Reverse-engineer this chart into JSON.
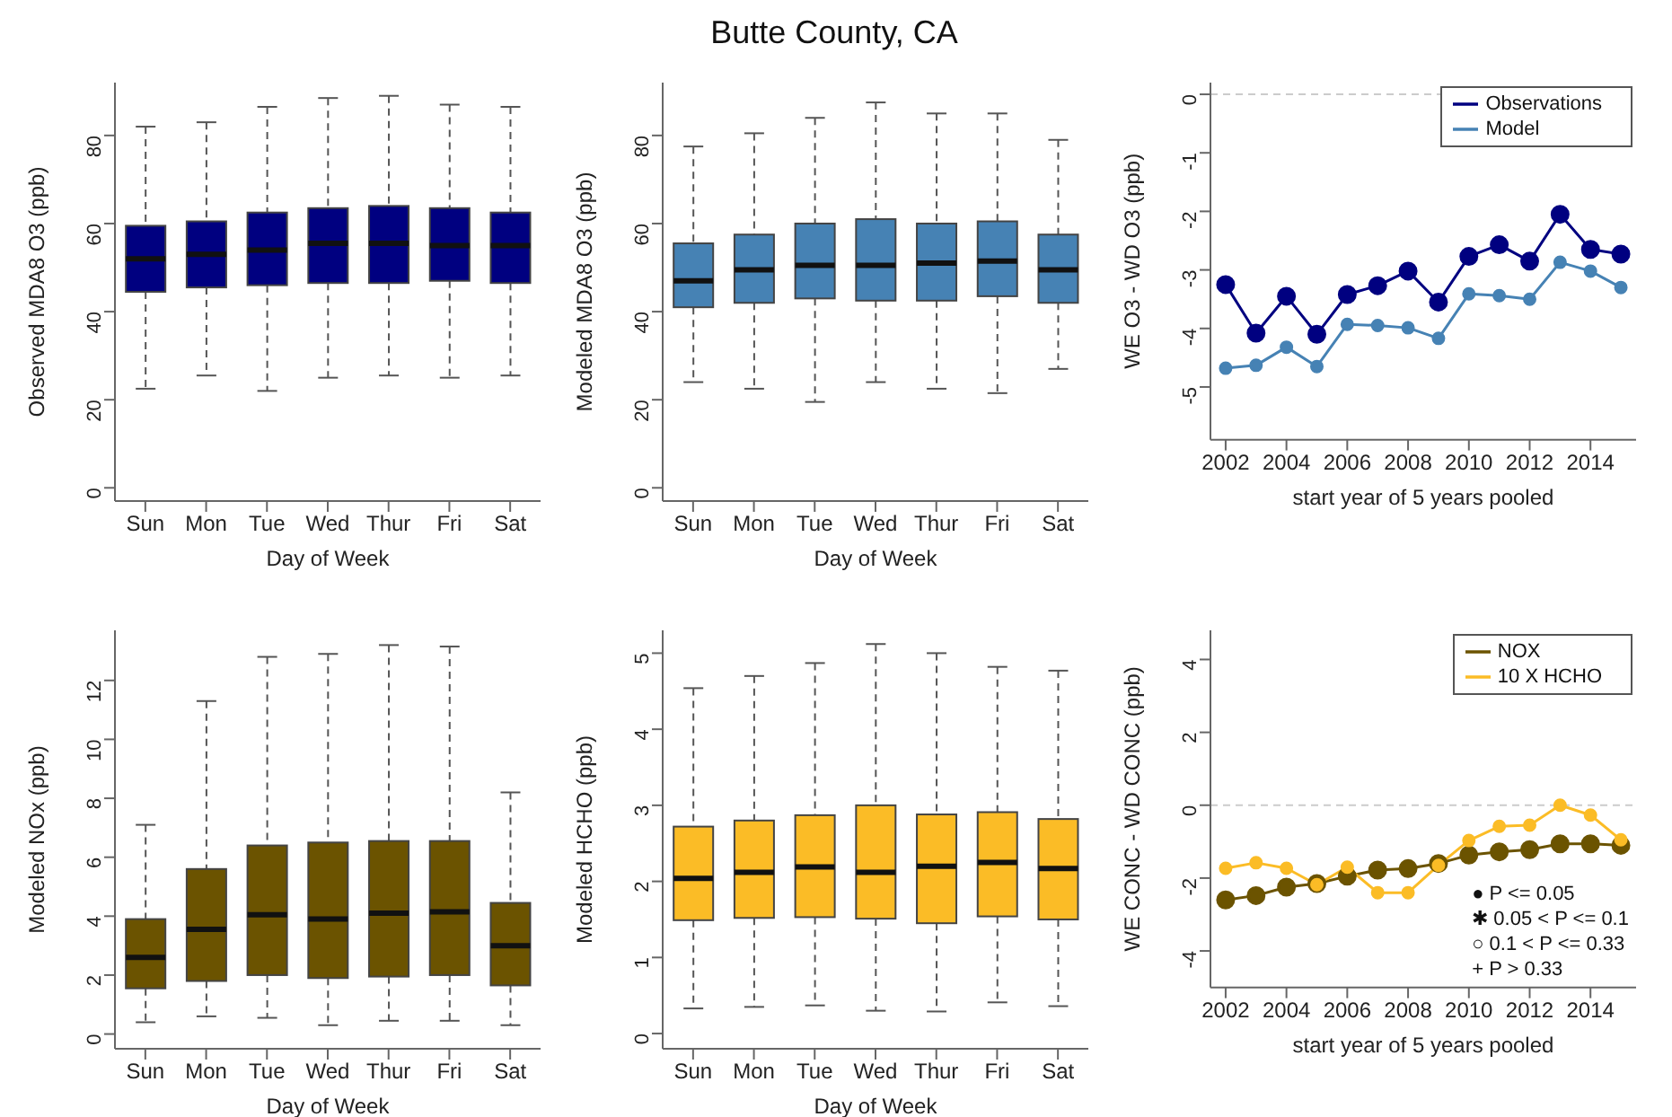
{
  "chart_data": [
    {
      "type": "box",
      "xlabel": "Day of Week",
      "ylabel": "Observed MDA8 O3 (ppb)",
      "categories": [
        "Sun",
        "Mon",
        "Tue",
        "Wed",
        "Thur",
        "Fri",
        "Sat"
      ],
      "ylim": [
        -3,
        92
      ],
      "yticks": [
        0,
        20,
        40,
        60,
        80
      ],
      "series": [
        {
          "color": "#000080",
          "boxes": [
            {
              "low": 22.5,
              "q1": 44.5,
              "median": 52,
              "q3": 59.5,
              "high": 82
            },
            {
              "low": 25.5,
              "q1": 45.5,
              "median": 53,
              "q3": 60.5,
              "high": 83
            },
            {
              "low": 22,
              "q1": 46,
              "median": 54,
              "q3": 62.5,
              "high": 86.5
            },
            {
              "low": 25,
              "q1": 46.5,
              "median": 55.5,
              "q3": 63.5,
              "high": 88.5
            },
            {
              "low": 25.5,
              "q1": 46.5,
              "median": 55.5,
              "q3": 64,
              "high": 89
            },
            {
              "low": 25,
              "q1": 47,
              "median": 55,
              "q3": 63.5,
              "high": 87
            },
            {
              "low": 25.5,
              "q1": 46.5,
              "median": 55,
              "q3": 62.5,
              "high": 86.5
            }
          ]
        }
      ]
    },
    {
      "type": "box",
      "title": "Butte County, CA",
      "xlabel": "Day of Week",
      "ylabel": "Modeled MDA8 O3 (ppb)",
      "categories": [
        "Sun",
        "Mon",
        "Tue",
        "Wed",
        "Thur",
        "Fri",
        "Sat"
      ],
      "ylim": [
        -3,
        92
      ],
      "yticks": [
        0,
        20,
        40,
        60,
        80
      ],
      "series": [
        {
          "color": "#4682b4",
          "boxes": [
            {
              "low": 24,
              "q1": 41,
              "median": 47,
              "q3": 55.5,
              "high": 77.5
            },
            {
              "low": 22.5,
              "q1": 42,
              "median": 49.5,
              "q3": 57.5,
              "high": 80.5
            },
            {
              "low": 19.5,
              "q1": 43,
              "median": 50.5,
              "q3": 60,
              "high": 84
            },
            {
              "low": 24,
              "q1": 42.5,
              "median": 50.5,
              "q3": 61,
              "high": 87.5
            },
            {
              "low": 22.5,
              "q1": 42.5,
              "median": 51,
              "q3": 60,
              "high": 85
            },
            {
              "low": 21.5,
              "q1": 43.5,
              "median": 51.5,
              "q3": 60.5,
              "high": 85
            },
            {
              "low": 27,
              "q1": 42,
              "median": 49.5,
              "q3": 57.5,
              "high": 79
            }
          ]
        }
      ]
    },
    {
      "type": "line",
      "xlabel": "start year of 5 years pooled",
      "ylabel": "WE O3 - WD O3 (ppb)",
      "x": [
        2002,
        2003,
        2004,
        2005,
        2006,
        2007,
        2008,
        2009,
        2010,
        2011,
        2012,
        2013,
        2014,
        2015
      ],
      "xlim": [
        2001.5,
        2015.5
      ],
      "xticks": [
        2002,
        2004,
        2006,
        2008,
        2010,
        2012,
        2014
      ],
      "ylim": [
        -5.9,
        0.2
      ],
      "yticks": [
        0,
        -1,
        -2,
        -3,
        -4,
        -5
      ],
      "legend": "top right",
      "marker": "circle",
      "line_style": "solid",
      "ref_lines": [
        {
          "axis": "y",
          "value": 0,
          "color": "#cccccc",
          "line_style": "dashed"
        }
      ],
      "series": [
        {
          "name": "Observations",
          "color": "#000080",
          "values": [
            -3.25,
            -4.08,
            -3.45,
            -4.1,
            -3.42,
            -3.27,
            -3.02,
            -3.55,
            -2.77,
            -2.57,
            -2.85,
            -2.05,
            -2.65,
            -2.73
          ]
        },
        {
          "name": "Model",
          "color": "#4682b4",
          "values": [
            -4.68,
            -4.63,
            -4.32,
            -4.65,
            -3.93,
            -3.95,
            -3.99,
            -4.17,
            -3.41,
            -3.44,
            -3.5,
            -2.87,
            -3.02,
            -3.3
          ]
        }
      ]
    },
    {
      "type": "box",
      "xlabel": "Day of Week",
      "ylabel": "Modeled NOx (ppb)",
      "categories": [
        "Sun",
        "Mon",
        "Tue",
        "Wed",
        "Thur",
        "Fri",
        "Sat"
      ],
      "ylim": [
        -0.5,
        13.7
      ],
      "yticks": [
        0,
        2,
        4,
        6,
        8,
        10,
        12
      ],
      "series": [
        {
          "color": "#6b5300",
          "boxes": [
            {
              "low": 0.4,
              "q1": 1.55,
              "median": 2.6,
              "q3": 3.9,
              "high": 7.1
            },
            {
              "low": 0.6,
              "q1": 1.8,
              "median": 3.55,
              "q3": 5.6,
              "high": 11.3
            },
            {
              "low": 0.55,
              "q1": 2,
              "median": 4.05,
              "q3": 6.4,
              "high": 12.8
            },
            {
              "low": 0.3,
              "q1": 1.9,
              "median": 3.9,
              "q3": 6.5,
              "high": 12.9
            },
            {
              "low": 0.45,
              "q1": 1.95,
              "median": 4.1,
              "q3": 6.55,
              "high": 13.2
            },
            {
              "low": 0.45,
              "q1": 2,
              "median": 4.15,
              "q3": 6.55,
              "high": 13.15
            },
            {
              "low": 0.3,
              "q1": 1.65,
              "median": 3,
              "q3": 4.45,
              "high": 8.2
            }
          ]
        }
      ]
    },
    {
      "type": "box",
      "xlabel": "Day of Week",
      "ylabel": "Modeled HCHO (ppb)",
      "categories": [
        "Sun",
        "Mon",
        "Tue",
        "Wed",
        "Thur",
        "Fri",
        "Sat"
      ],
      "ylim": [
        -0.2,
        5.3
      ],
      "yticks": [
        0,
        1,
        2,
        3,
        4,
        5
      ],
      "series": [
        {
          "color": "#fbbc26",
          "boxes": [
            {
              "low": 0.33,
              "q1": 1.49,
              "median": 2.04,
              "q3": 2.72,
              "high": 4.54
            },
            {
              "low": 0.35,
              "q1": 1.52,
              "median": 2.12,
              "q3": 2.8,
              "high": 4.7
            },
            {
              "low": 0.37,
              "q1": 1.53,
              "median": 2.19,
              "q3": 2.87,
              "high": 4.87
            },
            {
              "low": 0.3,
              "q1": 1.51,
              "median": 2.12,
              "q3": 3,
              "high": 5.12
            },
            {
              "low": 0.29,
              "q1": 1.45,
              "median": 2.2,
              "q3": 2.88,
              "high": 5
            },
            {
              "low": 0.41,
              "q1": 1.54,
              "median": 2.25,
              "q3": 2.91,
              "high": 4.82
            },
            {
              "low": 0.36,
              "q1": 1.5,
              "median": 2.17,
              "q3": 2.82,
              "high": 4.77
            }
          ]
        }
      ]
    },
    {
      "type": "line",
      "xlabel": "start year of 5 years pooled",
      "ylabel": "WE CONC - WD CONC (ppb)",
      "x": [
        2002,
        2003,
        2004,
        2005,
        2006,
        2007,
        2008,
        2009,
        2010,
        2011,
        2012,
        2013,
        2014,
        2015
      ],
      "xlim": [
        2001.5,
        2015.5
      ],
      "xticks": [
        2002,
        2004,
        2006,
        2008,
        2010,
        2012,
        2014
      ],
      "ylim": [
        -5,
        4.8
      ],
      "yticks": [
        -4,
        -2,
        0,
        2,
        4
      ],
      "legend": "top right",
      "marker": "circle",
      "line_style": "solid",
      "ref_lines": [
        {
          "axis": "y",
          "value": 0,
          "color": "#cccccc",
          "line_style": "dashed"
        }
      ],
      "annotations": [
        "● P <= 0.05",
        "✱ 0.05 < P <= 0.1",
        "○ 0.1 < P <= 0.33",
        "+ P > 0.33"
      ],
      "series": [
        {
          "name": "NOX",
          "color": "#6b5300",
          "values": [
            -2.6,
            -2.48,
            -2.25,
            -2.15,
            -1.95,
            -1.78,
            -1.74,
            -1.6,
            -1.37,
            -1.28,
            -1.22,
            -1.06,
            -1.06,
            -1.1
          ]
        },
        {
          "name": "10 X HCHO",
          "color": "#fbbc26",
          "values": [
            -1.73,
            -1.58,
            -1.73,
            -2.18,
            -1.7,
            -2.4,
            -2.4,
            -1.65,
            -0.97,
            -0.58,
            -0.55,
            0,
            -0.27,
            -0.95
          ]
        }
      ]
    }
  ]
}
